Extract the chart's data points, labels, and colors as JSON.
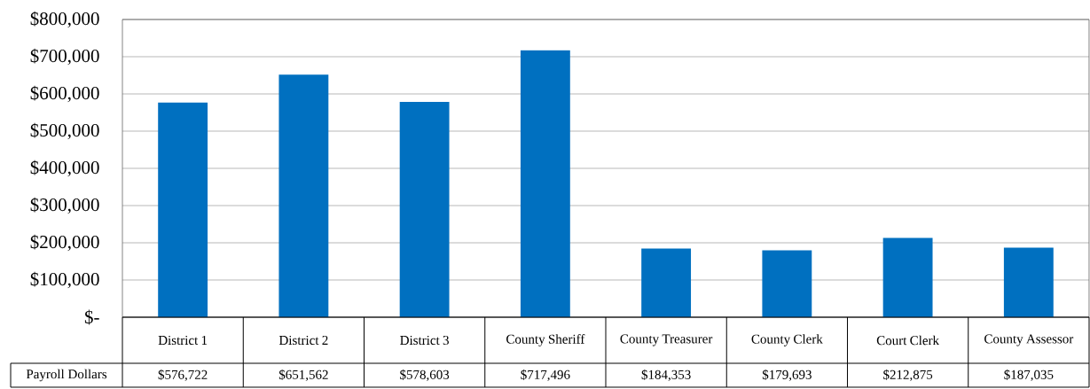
{
  "chart_data": {
    "type": "bar",
    "categories": [
      "District 1",
      "District 2",
      "District 3",
      "County Sheriff",
      "County Treasurer",
      "County Clerk",
      "Court Clerk",
      "County Assessor"
    ],
    "series": [
      {
        "name": "Payroll Dollars",
        "color": "#0070c0",
        "values": [
          576722,
          651562,
          578603,
          717496,
          184353,
          179693,
          212875,
          187035
        ],
        "value_labels": [
          "$576,722",
          "$651,562",
          "$578,603",
          "$717,496",
          "$184,353",
          "$179,693",
          "$212,875",
          "$187,035"
        ]
      }
    ],
    "ylim": [
      0,
      800000
    ],
    "yticks": [
      {
        "value": 0,
        "label": "$-"
      },
      {
        "value": 100000,
        "label": "$100,000"
      },
      {
        "value": 200000,
        "label": "$200,000"
      },
      {
        "value": 300000,
        "label": "$300,000"
      },
      {
        "value": 400000,
        "label": "$400,000"
      },
      {
        "value": 500000,
        "label": "$500,000"
      },
      {
        "value": 600000,
        "label": "$600,000"
      },
      {
        "value": 700000,
        "label": "$700,000"
      },
      {
        "value": 800000,
        "label": "$800,000"
      }
    ],
    "grid": "y"
  }
}
